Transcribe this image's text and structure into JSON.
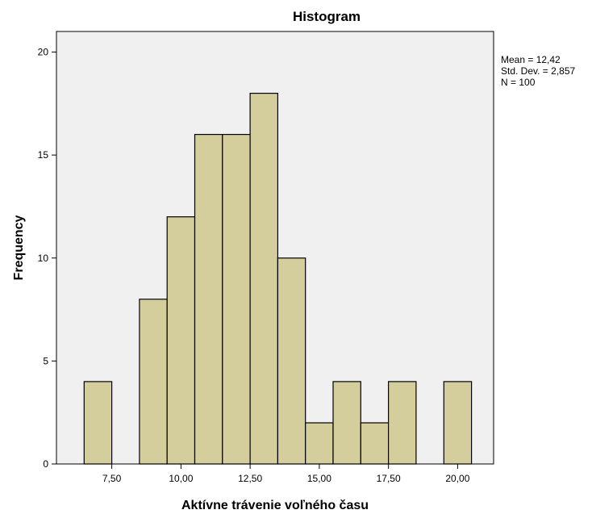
{
  "chart_data": {
    "type": "bar",
    "title": "Histogram",
    "xlabel": "Aktívne trávenie voľného času",
    "ylabel": "Frequency",
    "bin_width": 1,
    "bins": [
      {
        "center": 7,
        "count": 4
      },
      {
        "center": 9,
        "count": 8
      },
      {
        "center": 10,
        "count": 12
      },
      {
        "center": 11,
        "count": 16
      },
      {
        "center": 12,
        "count": 16
      },
      {
        "center": 13,
        "count": 18
      },
      {
        "center": 14,
        "count": 10
      },
      {
        "center": 15,
        "count": 2
      },
      {
        "center": 16,
        "count": 4
      },
      {
        "center": 17,
        "count": 2
      },
      {
        "center": 18,
        "count": 4
      },
      {
        "center": 20,
        "count": 4
      }
    ],
    "xlim": [
      5.5,
      21.3
    ],
    "ylim": [
      0,
      21
    ],
    "x_ticks": [
      {
        "value": 7.5,
        "label": "7,50"
      },
      {
        "value": 10,
        "label": "10,00"
      },
      {
        "value": 12.5,
        "label": "12,50"
      },
      {
        "value": 15,
        "label": "15,00"
      },
      {
        "value": 17.5,
        "label": "17,50"
      },
      {
        "value": 20,
        "label": "20,00"
      }
    ],
    "y_ticks": [
      {
        "value": 0,
        "label": "0"
      },
      {
        "value": 5,
        "label": "5"
      },
      {
        "value": 10,
        "label": "10"
      },
      {
        "value": 15,
        "label": "15"
      },
      {
        "value": 20,
        "label": "20"
      }
    ],
    "stats": [
      "Mean = 12,42",
      "Std. Dev. = 2,857",
      "N = 100"
    ],
    "grid": false,
    "legend_placement": "top-right",
    "colors": {
      "bar": "#d3ce9c",
      "plot_background": "#f0f0f0"
    }
  }
}
